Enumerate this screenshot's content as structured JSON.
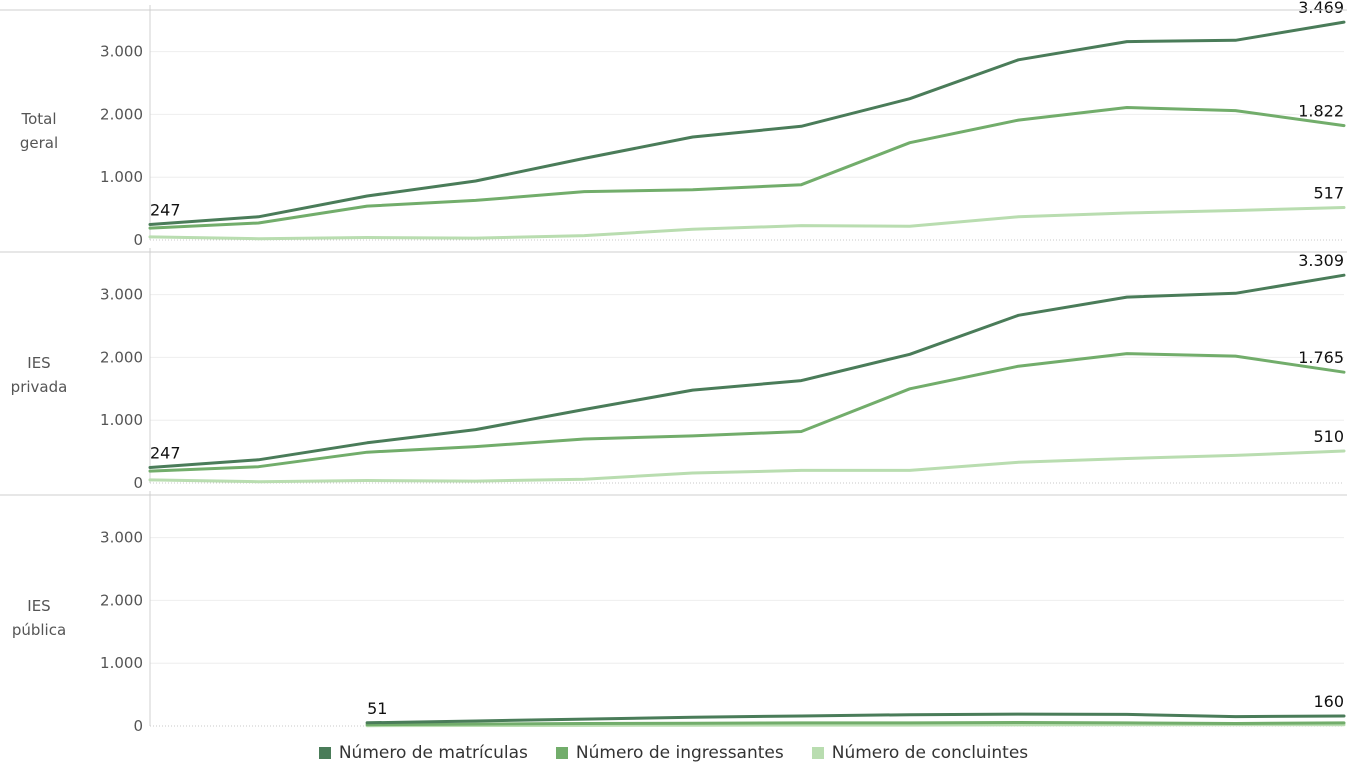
{
  "chart_data": {
    "type": "line",
    "x": [
      1,
      2,
      3,
      4,
      5,
      6,
      7,
      8,
      9,
      10,
      11,
      12
    ],
    "ylim": [
      0,
      3600
    ],
    "yticks": [
      0,
      1000,
      2000,
      3000
    ],
    "ytick_labels": [
      "0",
      "1.000",
      "2.000",
      "3.000"
    ],
    "grid": "horizontal",
    "legend_position": "bottom",
    "colors": {
      "Número de matrículas": "#4a7c59",
      "Número de ingressantes": "#72ad6b",
      "Número de concluintes": "#b9ddb0"
    },
    "panels": [
      {
        "label": "Total geral",
        "series": [
          {
            "name": "Número de matrículas",
            "values": [
              247,
              370,
              700,
              940,
              1300,
              1640,
              1810,
              2250,
              2870,
              3160,
              3180,
              3469
            ]
          },
          {
            "name": "Número de ingressantes",
            "values": [
              190,
              270,
              540,
              630,
              770,
              800,
              880,
              1550,
              1910,
              2110,
              2060,
              1822
            ]
          },
          {
            "name": "Número de concluintes",
            "values": [
              50,
              20,
              40,
              30,
              70,
              170,
              230,
              220,
              370,
              430,
              470,
              517
            ]
          }
        ],
        "labels": [
          {
            "series": 0,
            "index": 0,
            "text": "247"
          },
          {
            "series": 0,
            "index": 11,
            "text": "3.469"
          },
          {
            "series": 1,
            "index": 11,
            "text": "1.822"
          },
          {
            "series": 2,
            "index": 11,
            "text": "517"
          }
        ]
      },
      {
        "label": "IES privada",
        "series": [
          {
            "name": "Número de matrículas",
            "values": [
              247,
              370,
              640,
              850,
              1170,
              1480,
              1630,
              2050,
              2670,
              2960,
              3020,
              3309
            ]
          },
          {
            "name": "Número de ingressantes",
            "values": [
              190,
              260,
              490,
              580,
              700,
              750,
              820,
              1500,
              1860,
              2060,
              2020,
              1765
            ]
          },
          {
            "name": "Número de concluintes",
            "values": [
              50,
              20,
              40,
              30,
              60,
              160,
              200,
              200,
              330,
              390,
              440,
              510
            ]
          }
        ],
        "labels": [
          {
            "series": 0,
            "index": 0,
            "text": "247"
          },
          {
            "series": 0,
            "index": 11,
            "text": "3.309"
          },
          {
            "series": 1,
            "index": 11,
            "text": "1.765"
          },
          {
            "series": 2,
            "index": 11,
            "text": "510"
          }
        ]
      },
      {
        "label": "IES pública",
        "series": [
          {
            "name": "Número de matrículas",
            "values": [
              null,
              null,
              51,
              80,
              110,
              140,
              160,
              180,
              190,
              185,
              150,
              160
            ]
          },
          {
            "name": "Número de ingressantes",
            "values": [
              null,
              null,
              20,
              30,
              40,
              45,
              50,
              50,
              55,
              50,
              40,
              50
            ]
          },
          {
            "name": "Número de concluintes",
            "values": [
              null,
              null,
              5,
              8,
              10,
              12,
              15,
              15,
              18,
              20,
              20,
              20
            ]
          }
        ],
        "labels": [
          {
            "series": 0,
            "index": 2,
            "text": "51"
          },
          {
            "series": 0,
            "index": 11,
            "text": "160"
          }
        ]
      }
    ]
  }
}
